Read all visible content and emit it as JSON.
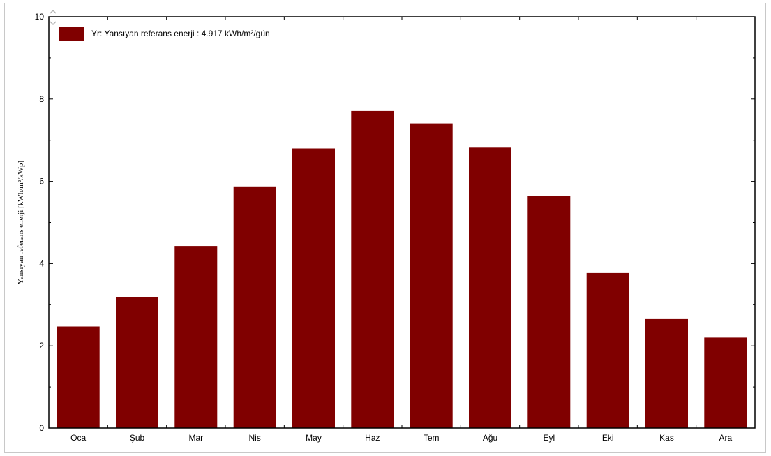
{
  "chart_data": {
    "type": "bar",
    "categories": [
      "Oca",
      "Şub",
      "Mar",
      "Nis",
      "May",
      "Haz",
      "Tem",
      "Ağu",
      "Eyl",
      "Eki",
      "Kas",
      "Ara"
    ],
    "values": [
      2.47,
      3.19,
      4.43,
      5.86,
      6.8,
      7.71,
      7.41,
      6.82,
      5.65,
      3.77,
      2.65,
      2.2
    ],
    "ylabel": "Yansıyan referans enerji [kWh/m²/kWp]",
    "xlabel": "",
    "ylim": [
      0,
      10
    ],
    "yticks": [
      0,
      2,
      4,
      6,
      8,
      10
    ],
    "legend": {
      "label": "Yr: Yansıyan referans enerji :  4.917 kWh/m²/gün",
      "placement": "top-left"
    },
    "bar_color": "#800000",
    "grid": false
  },
  "ui": {
    "scroll_icons": [
      "chevron-up-icon",
      "chevron-down-icon"
    ]
  }
}
